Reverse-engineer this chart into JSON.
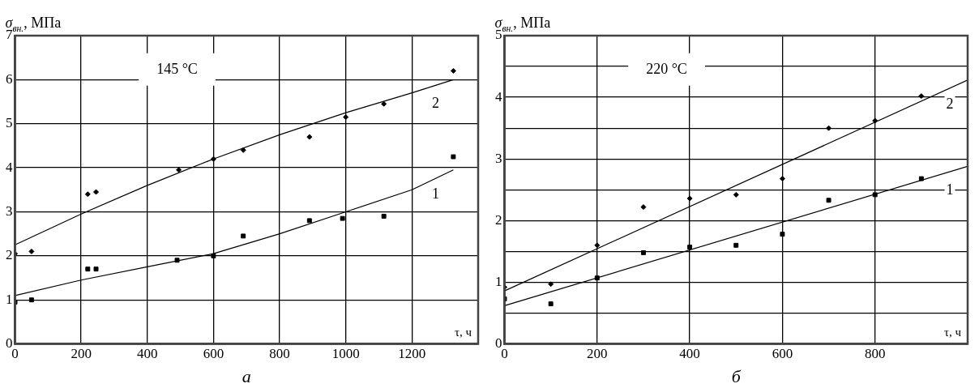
{
  "chart_data": [
    {
      "type": "scatter",
      "title": "145 °C",
      "xlabel": "τ, ч",
      "ylabel": "σ$_{вн.}$, МПа",
      "xlim": [
        0,
        1400
      ],
      "ylim": [
        0,
        7
      ],
      "xticks": [
        0,
        200,
        400,
        600,
        800,
        1000,
        1200,
        {
          "value": 1400,
          "label": null
        }
      ],
      "yticks": [
        0,
        1,
        2,
        3,
        4,
        5,
        6,
        7
      ],
      "grid": true,
      "legend": false,
      "series": [
        {
          "type": "scatter",
          "marker": "square",
          "color": "#000000",
          "x": [
            0,
            50,
            220,
            245,
            490,
            600,
            690,
            890,
            990,
            1115,
            1325
          ],
          "values": [
            0.95,
            1.0,
            1.7,
            1.7,
            1.9,
            2.0,
            2.45,
            2.8,
            2.85,
            2.9,
            4.25
          ]
        },
        {
          "type": "scatter",
          "marker": "diamond",
          "color": "#000000",
          "x": [
            0,
            50,
            220,
            245,
            495,
            600,
            690,
            890,
            1000,
            1115,
            1325
          ],
          "values": [
            2.05,
            2.1,
            3.4,
            3.45,
            3.95,
            4.2,
            4.4,
            4.7,
            5.15,
            5.45,
            6.2
          ]
        },
        {
          "type": "line",
          "marker": "none",
          "name": "1",
          "color": "#000000",
          "x": [
            0,
            200,
            400,
            600,
            800,
            1000,
            1200,
            1325
          ],
          "values": [
            1.1,
            1.45,
            1.75,
            2.05,
            2.5,
            3.0,
            3.5,
            3.95
          ]
        },
        {
          "type": "line",
          "marker": "none",
          "name": "2",
          "color": "#000000",
          "x": [
            0,
            200,
            400,
            600,
            800,
            1000,
            1200,
            1325
          ],
          "values": [
            2.25,
            2.95,
            3.6,
            4.2,
            4.75,
            5.25,
            5.7,
            6.0
          ]
        }
      ],
      "annotations": [
        "а"
      ]
    },
    {
      "type": "scatter",
      "title": "220 °C",
      "xlabel": "τ, ч",
      "ylabel": "σ$_{вн.}$, МПа",
      "xlim": [
        0,
        1000
      ],
      "ylim": [
        0,
        5
      ],
      "xticks": [
        0,
        200,
        400,
        600,
        800,
        {
          "value": 1000,
          "label": null
        }
      ],
      "yticks": [
        0,
        {
          "value": 0.5,
          "label": null
        },
        1,
        {
          "value": 1.5,
          "label": null
        },
        2,
        {
          "value": 2.5,
          "label": null
        },
        3,
        {
          "value": 3.5,
          "label": null
        },
        4,
        {
          "value": 4.5,
          "label": null
        },
        5
      ],
      "grid": true,
      "legend": false,
      "series": [
        {
          "type": "scatter",
          "marker": "square",
          "color": "#000000",
          "x": [
            0,
            100,
            200,
            300,
            400,
            500,
            600,
            700,
            800,
            900
          ],
          "values": [
            0.73,
            0.65,
            1.07,
            1.48,
            1.57,
            1.6,
            1.78,
            2.33,
            2.42,
            2.68
          ]
        },
        {
          "type": "scatter",
          "marker": "diamond",
          "color": "#000000",
          "x": [
            0,
            100,
            200,
            300,
            400,
            500,
            600,
            700,
            800,
            900
          ],
          "values": [
            0.92,
            0.97,
            1.6,
            2.22,
            2.36,
            2.42,
            2.68,
            3.5,
            3.62,
            4.02
          ]
        },
        {
          "type": "line",
          "marker": "none",
          "name": "1",
          "color": "#000000",
          "x": [
            0,
            1000
          ],
          "values": [
            0.62,
            2.88
          ]
        },
        {
          "type": "line",
          "marker": "none",
          "name": "2",
          "color": "#000000",
          "x": [
            0,
            1000
          ],
          "values": [
            0.86,
            4.28
          ]
        }
      ],
      "annotations": [
        "б"
      ]
    }
  ]
}
